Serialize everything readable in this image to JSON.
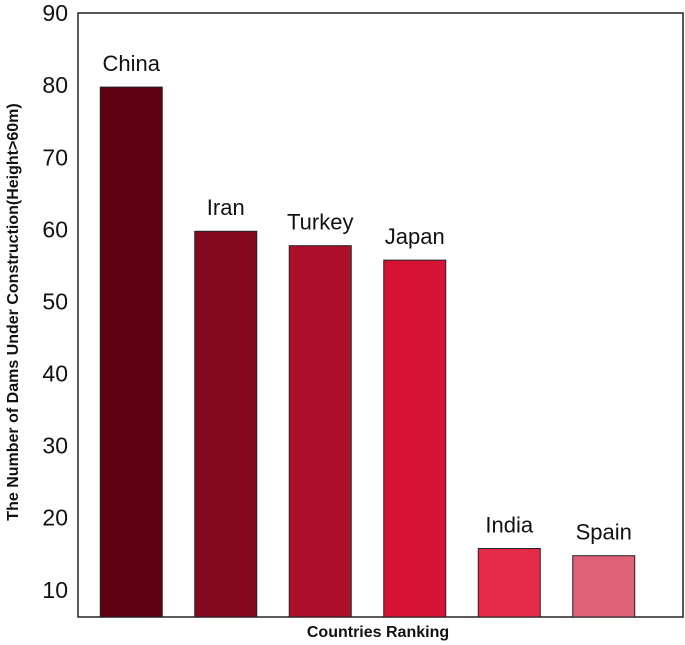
{
  "chart_data": {
    "type": "bar",
    "y_label": "The Number of Dams Under Construction(Height>60m)",
    "x_label": "Countries Ranking",
    "categories": [
      "China",
      "Iran",
      "Turkey",
      "Japan",
      "India",
      "Spain"
    ],
    "values": [
      80,
      60,
      58,
      56,
      16,
      15
    ],
    "colors": [
      "#5c0012",
      "#850a1f",
      "#ad0f2a",
      "#d61235",
      "#e62a4a",
      "#de6176"
    ],
    "ylim": [
      6.5,
      90
    ],
    "yticks": [
      10,
      20,
      30,
      40,
      50,
      60,
      70,
      80,
      90
    ],
    "grid": false
  }
}
